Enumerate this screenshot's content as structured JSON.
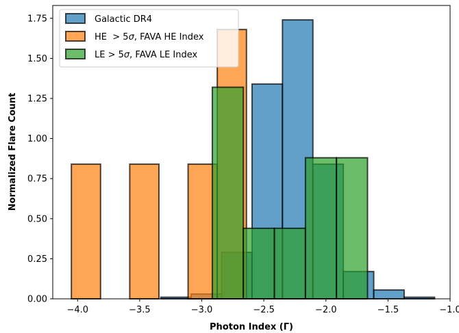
{
  "chart_data": {
    "type": "bar",
    "subtype": "overlapping-histogram",
    "xlabel": "Photon Index (Γ)",
    "ylabel": "Normalized Flare Count",
    "xlim": [
      -4.2,
      -1.0
    ],
    "ylim": [
      0,
      1.83
    ],
    "x_ticks": [
      -4.0,
      -3.5,
      -3.0,
      -2.5,
      -2.0,
      -1.5,
      -1.0
    ],
    "x_tick_labels": [
      "−4.0",
      "−3.5",
      "−3.0",
      "−2.5",
      "−2.0",
      "−1.5",
      "−1.0"
    ],
    "y_ticks": [
      0,
      0.25,
      0.5,
      0.75,
      1.0,
      1.25,
      1.5,
      1.75
    ],
    "y_tick_labels": [
      "0.00",
      "0.25",
      "0.50",
      "0.75",
      "1.00",
      "1.25",
      "1.50",
      "1.75"
    ],
    "legend_position": "top-left",
    "grid": false,
    "series": [
      {
        "name": "Galactic DR4",
        "color": "#1f77b4",
        "bins": [
          {
            "x0": -3.33,
            "x1": -3.085,
            "value": 0.01
          },
          {
            "x0": -3.085,
            "x1": -2.84,
            "value": 0.03
          },
          {
            "x0": -2.84,
            "x1": -2.595,
            "value": 0.29
          },
          {
            "x0": -2.595,
            "x1": -2.35,
            "value": 1.34
          },
          {
            "x0": -2.35,
            "x1": -2.105,
            "value": 1.74
          },
          {
            "x0": -2.105,
            "x1": -1.86,
            "value": 0.84
          },
          {
            "x0": -1.86,
            "x1": -1.615,
            "value": 0.17
          },
          {
            "x0": -1.615,
            "x1": -1.37,
            "value": 0.055
          },
          {
            "x0": -1.37,
            "x1": -1.125,
            "value": 0.01
          }
        ]
      },
      {
        "name": "HE $>5\\sigma$, FAVA HE Index",
        "color": "#ff7f0e",
        "bins": [
          {
            "x0": -4.05,
            "x1": -3.815,
            "value": 0.84
          },
          {
            "x0": -3.815,
            "x1": -3.58,
            "value": 0.0
          },
          {
            "x0": -3.58,
            "x1": -3.345,
            "value": 0.84
          },
          {
            "x0": -3.345,
            "x1": -3.11,
            "value": 0.0
          },
          {
            "x0": -3.11,
            "x1": -2.875,
            "value": 0.84
          },
          {
            "x0": -2.875,
            "x1": -2.64,
            "value": 1.68
          }
        ]
      },
      {
        "name": "LE $>5\\sigma$, FAVA LE Index",
        "color": "#2ca02c",
        "bins": [
          {
            "x0": -2.915,
            "x1": -2.665,
            "value": 1.32
          },
          {
            "x0": -2.665,
            "x1": -2.415,
            "value": 0.44
          },
          {
            "x0": -2.415,
            "x1": -2.165,
            "value": 0.44
          },
          {
            "x0": -2.165,
            "x1": -1.915,
            "value": 0.88
          },
          {
            "x0": -1.915,
            "x1": -1.665,
            "value": 0.88
          }
        ]
      }
    ]
  },
  "legend": {
    "items": [
      {
        "prefix": "Galactic DR4",
        "sigma": "",
        "suffix": ""
      },
      {
        "prefix": "HE  > 5",
        "sigma": "σ",
        "suffix": ", FAVA HE Index"
      },
      {
        "prefix": "LE > 5",
        "sigma": "σ",
        "suffix": ", FAVA LE Index"
      }
    ]
  }
}
